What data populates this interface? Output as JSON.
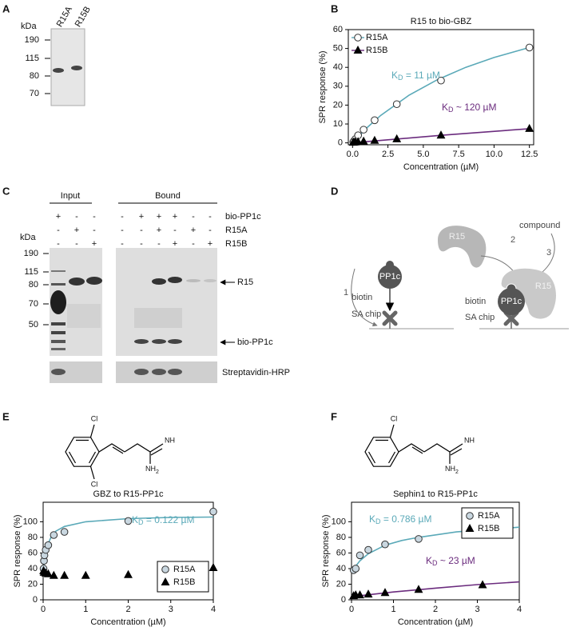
{
  "panel_labels": [
    "A",
    "B",
    "C",
    "D",
    "E",
    "F"
  ],
  "gel_a": {
    "unit": "kDa",
    "markers": [
      190,
      115,
      80,
      70
    ],
    "lanes": [
      "R15A",
      "R15B"
    ]
  },
  "gel_c": {
    "groups": [
      "Input",
      "Bound"
    ],
    "conditions": [
      {
        "name": "bio-PP1c",
        "signs": [
          "+",
          "-",
          "-",
          "-",
          "+",
          "+",
          "+",
          "-",
          "-"
        ]
      },
      {
        "name": "R15A",
        "signs": [
          "-",
          "+",
          "-",
          "-",
          "-",
          "+",
          "-",
          "+",
          "-"
        ]
      },
      {
        "name": "R15B",
        "signs": [
          "-",
          "-",
          "+",
          "-",
          "-",
          "-",
          "+",
          "-",
          "+"
        ]
      }
    ],
    "unit": "kDa",
    "markers": [
      190,
      115,
      80,
      70,
      50
    ],
    "bands": [
      "R15",
      "bio-PP1c"
    ],
    "blot": "Streptavidin-HRP"
  },
  "diagram": {
    "free_protein": "R15",
    "compound": "compound",
    "steps": [
      "1",
      "2",
      "3"
    ],
    "left": {
      "tag": "biotin",
      "protein": "PP1c",
      "surface": "SA chip"
    },
    "right": {
      "tag": "biotin",
      "protein": "PP1c",
      "partner": "R15",
      "surface": "SA chip"
    }
  },
  "structures": [
    {
      "labels": [
        "Cl",
        "Cl",
        "NH",
        "NH",
        "2"
      ]
    },
    {
      "labels": [
        "Cl",
        "NH",
        "NH",
        "2"
      ]
    }
  ],
  "chart_data": [
    {
      "type": "scatter",
      "title": "R15 to bio-GBZ",
      "xlabel": "Concentration (µM)",
      "ylabel": "SPR response (%)",
      "xlim": [
        -0.3,
        12.8
      ],
      "ylim": [
        -1,
        60
      ],
      "xticks": [
        {
          "value": 0,
          "label": "0.0"
        },
        2.5,
        {
          "value": 5,
          "label": "5.0"
        },
        7.5,
        {
          "value": 10,
          "label": "10.0"
        },
        12.5
      ],
      "yticks": [
        0,
        10,
        20,
        30,
        40,
        50,
        60
      ],
      "grid": false,
      "legend": "upper left",
      "legend_frame": false,
      "series": [
        {
          "name": "R15A",
          "color": "#333333",
          "marker": "circle",
          "marker_fill": "#ffffff",
          "x": [
            0.05,
            0.1,
            0.2,
            0.39,
            0.78,
            1.56,
            3.125,
            6.25,
            12.5
          ],
          "values": [
            0.5,
            1,
            2,
            4,
            7,
            12,
            20.5,
            33,
            50.5
          ]
        },
        {
          "name": "R15B",
          "color": "#000000",
          "marker": "triangle",
          "marker_fill": "#000000",
          "x": [
            0.05,
            0.1,
            0.2,
            0.39,
            0.78,
            1.56,
            3.125,
            6.25,
            12.5
          ],
          "values": [
            0.2,
            0.3,
            0.4,
            0.5,
            0.8,
            1.2,
            2,
            4,
            7.5
          ]
        }
      ],
      "fits": [
        {
          "color": "#5aa9b8",
          "x": [
            0,
            1,
            2,
            4,
            6,
            8,
            10,
            12.5
          ],
          "values": [
            0,
            7.9,
            14.6,
            25.3,
            33.5,
            40,
            45.2,
            50.5
          ]
        },
        {
          "color": "#6b2c7e",
          "x": [
            0,
            6.25,
            12.5
          ],
          "values": [
            0,
            4,
            7.5
          ]
        }
      ],
      "annotations": [
        {
          "main": "K",
          "sub": "D",
          "text": " = 11 µM",
          "color": "#5aa9b8"
        },
        {
          "main": "K",
          "sub": "D",
          "text": " ~ 120 µM",
          "color": "#6b2c7e"
        }
      ]
    },
    {
      "type": "scatter",
      "title": "GBZ to R15-PP1c",
      "xlabel": "Concentration (µM)",
      "ylabel": "SPR response (%)",
      "xlim": [
        0,
        4
      ],
      "ylim": [
        0,
        125
      ],
      "xticks": [
        0,
        1,
        2,
        3,
        4
      ],
      "yticks": [
        0,
        20,
        40,
        60,
        80,
        100
      ],
      "grid": false,
      "legend": "lower right",
      "legend_frame": true,
      "series": [
        {
          "name": "R15A",
          "color": "#333333",
          "marker": "circle",
          "marker_fill": "#c9d7e0",
          "x": [
            0.01,
            0.02,
            0.03,
            0.06,
            0.12,
            0.25,
            0.5,
            2,
            4
          ],
          "values": [
            40,
            50,
            57,
            64,
            70,
            83,
            87,
            101,
            113
          ]
        },
        {
          "name": "R15B",
          "color": "#000000",
          "marker": "triangle",
          "marker_fill": "#000000",
          "x": [
            0.01,
            0.02,
            0.06,
            0.12,
            0.25,
            0.5,
            1,
            2,
            4
          ],
          "values": [
            37,
            35,
            34,
            33,
            31,
            31,
            31,
            32,
            41
          ]
        }
      ],
      "fits": [
        {
          "color": "#5aa9b8",
          "x": [
            0,
            0.05,
            0.1,
            0.2,
            0.3,
            0.5,
            1,
            2,
            3,
            4
          ],
          "values": [
            38,
            58,
            70,
            82,
            88,
            94,
            100,
            104,
            105.5,
            106
          ]
        }
      ],
      "annotations": [
        {
          "main": "K",
          "sub": "D",
          "text": " = 0.122 µM",
          "color": "#5aa9b8"
        }
      ]
    },
    {
      "type": "scatter",
      "title": "Sephin1 to R15-PP1c",
      "xlabel": "Concentration (µM)",
      "ylabel": "SPR response (%)",
      "xlim": [
        0,
        4
      ],
      "ylim": [
        0,
        125
      ],
      "xticks": [
        0,
        1,
        2,
        3,
        4
      ],
      "yticks": [
        0,
        20,
        40,
        60,
        80,
        100
      ],
      "grid": false,
      "legend": "center right",
      "legend_frame": true,
      "series": [
        {
          "name": "R15A",
          "color": "#333333",
          "marker": "circle",
          "marker_fill": "#c9d7e0",
          "x": [
            0.05,
            0.1,
            0.2,
            0.4,
            0.8,
            1.6
          ],
          "values": [
            38,
            40,
            57,
            64,
            71,
            78
          ]
        },
        {
          "name": "R15B",
          "color": "#000000",
          "marker": "triangle",
          "marker_fill": "#000000",
          "x": [
            0.05,
            0.1,
            0.2,
            0.4,
            0.8,
            1.6,
            3.125
          ],
          "values": [
            5,
            6,
            6,
            7,
            9,
            13,
            19
          ]
        }
      ],
      "fits": [
        {
          "color": "#5aa9b8",
          "x": [
            0,
            0.1,
            0.2,
            0.4,
            0.8,
            1.2,
            1.6,
            2.5,
            3.2,
            4
          ],
          "values": [
            35,
            43,
            50,
            59,
            70,
            76,
            80,
            87,
            90,
            93
          ]
        },
        {
          "color": "#6b2c7e",
          "x": [
            0,
            1,
            2,
            3,
            4
          ],
          "values": [
            4,
            10,
            15,
            19.5,
            23
          ]
        }
      ],
      "annotations": [
        {
          "main": "K",
          "sub": "D",
          "text": " = 0.786 µM",
          "color": "#5aa9b8"
        },
        {
          "main": "K",
          "sub": "D",
          "text": " ~ 23 µM",
          "color": "#6b2c7e"
        }
      ]
    }
  ]
}
